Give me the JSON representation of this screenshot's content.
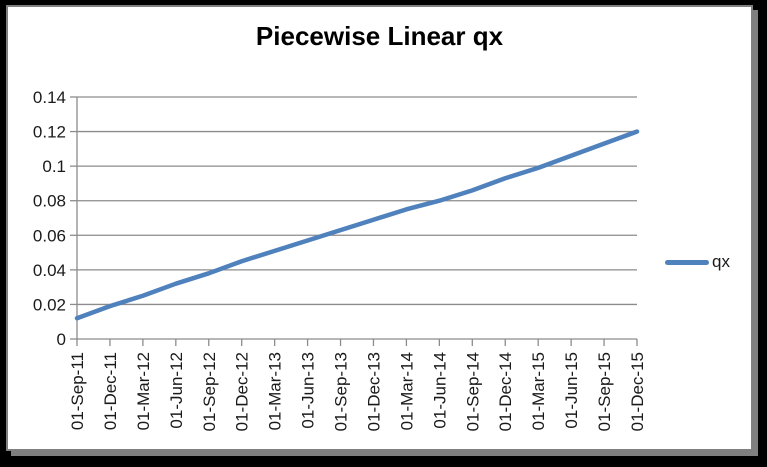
{
  "frame": {
    "background_color": "#000000",
    "panel_color": "#ffffff",
    "panel_border_color": "#808080"
  },
  "chart_data": {
    "type": "line",
    "title": "Piecewise Linear qx",
    "categories": [
      "01-Sep-11",
      "01-Dec-11",
      "01-Mar-12",
      "01-Jun-12",
      "01-Sep-12",
      "01-Dec-12",
      "01-Mar-13",
      "01-Jun-13",
      "01-Sep-13",
      "01-Dec-13",
      "01-Mar-14",
      "01-Jun-14",
      "01-Sep-14",
      "01-Dec-14",
      "01-Mar-15",
      "01-Jun-15",
      "01-Sep-15",
      "01-Dec-15"
    ],
    "series": [
      {
        "name": "qx",
        "values": [
          0.012,
          0.019,
          0.025,
          0.032,
          0.038,
          0.045,
          0.051,
          0.057,
          0.063,
          0.069,
          0.075,
          0.08,
          0.086,
          0.093,
          0.099,
          0.106,
          0.113,
          0.12
        ]
      }
    ],
    "xlabel": "",
    "ylabel": "",
    "ylim": [
      0,
      0.14
    ],
    "ytick_step": 0.02,
    "ytick_labels": [
      "0",
      "0.02",
      "0.04",
      "0.06",
      "0.08",
      "0.1",
      "0.12",
      "0.14"
    ],
    "grid": true,
    "legend_position": "right",
    "line_color": "#4F81BD",
    "grid_color": "#8C8C8C",
    "axis_color": "#8C8C8C",
    "tick_label_color": "#1a1a1a",
    "x_label_rotation_deg": -90
  }
}
